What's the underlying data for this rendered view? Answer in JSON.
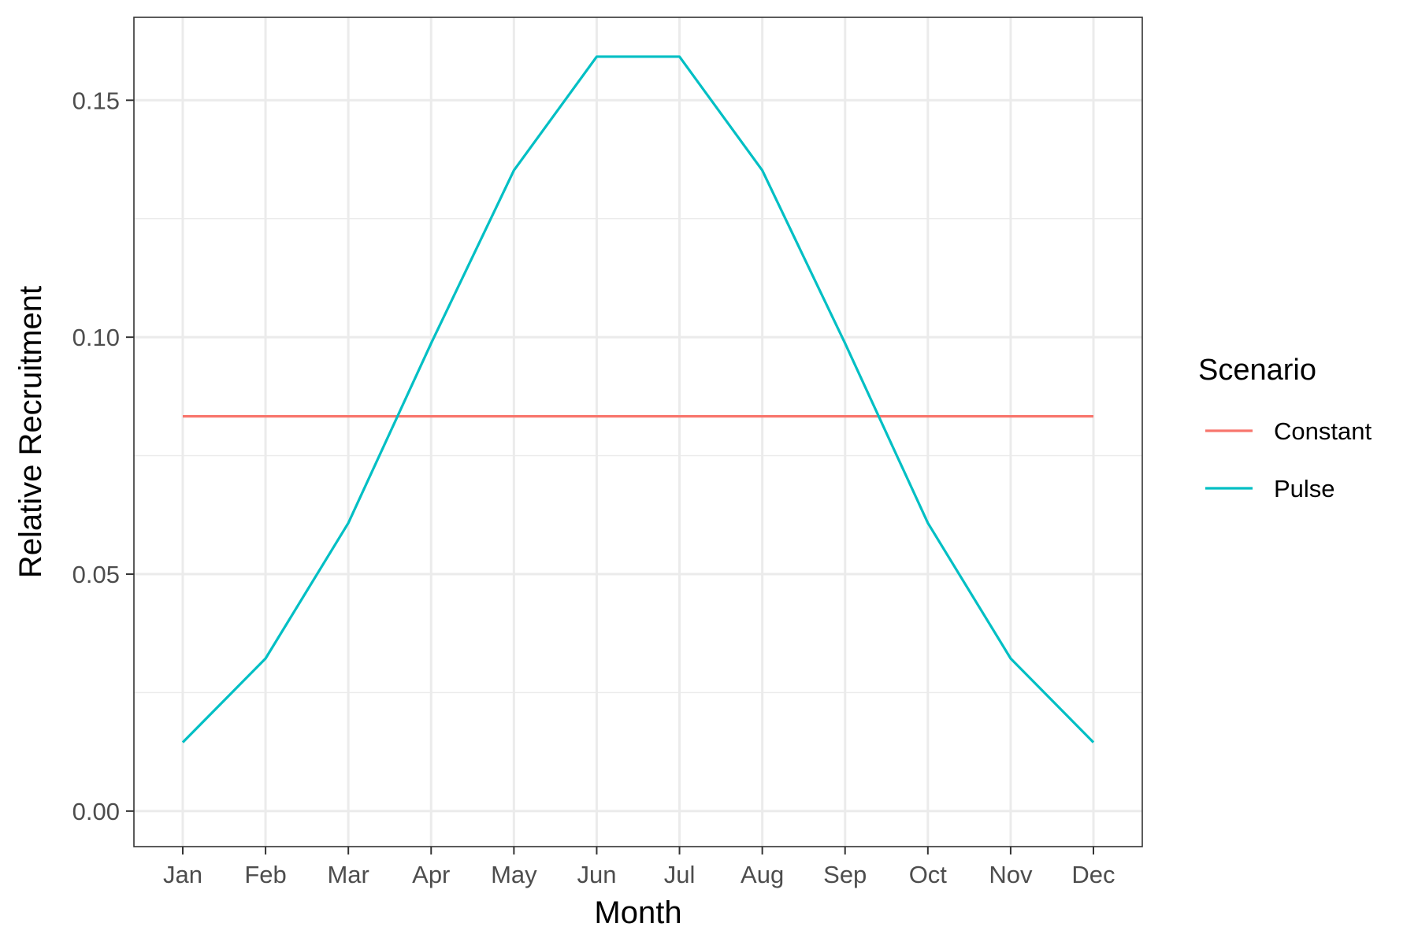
{
  "chart_data": {
    "type": "line",
    "title": "",
    "xlabel": "Month",
    "ylabel": "Relative Recruitment",
    "categories": [
      "Jan",
      "Feb",
      "Mar",
      "Apr",
      "May",
      "Jun",
      "Jul",
      "Aug",
      "Sep",
      "Oct",
      "Nov",
      "Dec"
    ],
    "ylim": [
      -0.0075,
      0.1675
    ],
    "yticks": [
      0.0,
      0.05,
      0.1,
      0.15
    ],
    "ytick_labels": [
      "0.00",
      "0.05",
      "0.10",
      "0.15"
    ],
    "grid": true,
    "legend": {
      "title": "Scenario",
      "position": "right"
    },
    "series": [
      {
        "name": "Constant",
        "color": "#F8766D",
        "values": [
          0.0833,
          0.0833,
          0.0833,
          0.0833,
          0.0833,
          0.0833,
          0.0833,
          0.0833,
          0.0833,
          0.0833,
          0.0833,
          0.0833
        ]
      },
      {
        "name": "Pulse",
        "color": "#00BFC4",
        "values": [
          0.0145,
          0.0322,
          0.0608,
          0.0987,
          0.1352,
          0.1592,
          0.1592,
          0.1352,
          0.0987,
          0.0608,
          0.0322,
          0.0145
        ]
      }
    ]
  }
}
